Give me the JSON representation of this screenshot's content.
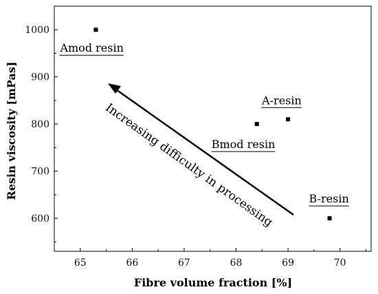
{
  "chart_data": {
    "type": "scatter",
    "xlabel": "Fibre volume fraction [%]",
    "ylabel": "Resin viscosity [mPas]",
    "xlim": [
      64.5,
      70.6
    ],
    "ylim": [
      530,
      1050
    ],
    "xticks": [
      65,
      66,
      67,
      68,
      69,
      70
    ],
    "yticks": [
      600,
      700,
      800,
      900,
      1000
    ],
    "grid": false,
    "legend": "none",
    "points": [
      {
        "x": 65.3,
        "y": 1000,
        "label": "Amod resin"
      },
      {
        "x": 68.4,
        "y": 800,
        "label": "Bmod resin"
      },
      {
        "x": 69.0,
        "y": 810,
        "label": "A-resin"
      },
      {
        "x": 69.8,
        "y": 600,
        "label": "B-resin"
      }
    ],
    "annotations": [
      {
        "text": "Increasing difficulty in processing",
        "type": "arrow"
      }
    ],
    "colors": {
      "marker": "#000000",
      "axis": "#000000"
    }
  }
}
